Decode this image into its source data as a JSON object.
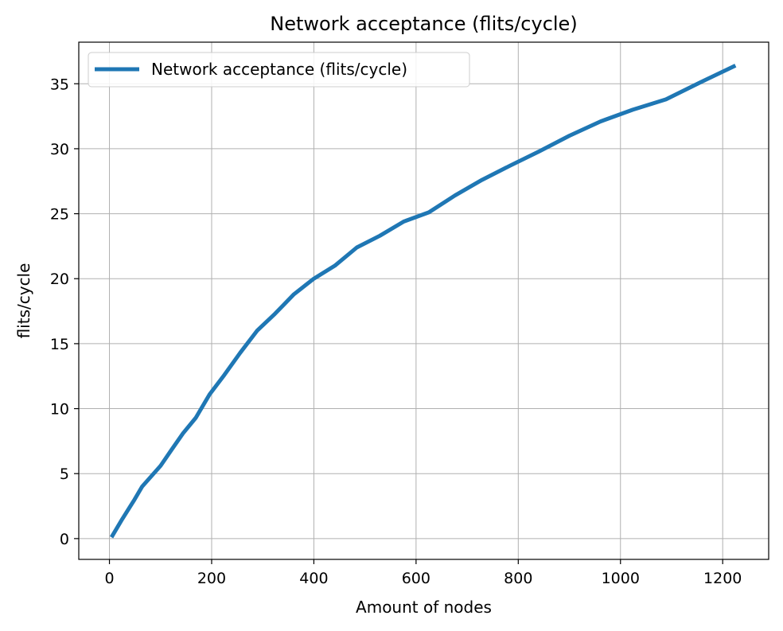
{
  "chart_data": {
    "type": "line",
    "title": "Network acceptance (flits/cycle)",
    "xlabel": "Amount of nodes",
    "ylabel": "flits/cycle",
    "xlim": [
      -60,
      1290
    ],
    "ylim": [
      -1.6,
      38.2
    ],
    "xticks": [
      0,
      200,
      400,
      600,
      800,
      1000,
      1200
    ],
    "yticks": [
      0,
      5,
      10,
      15,
      20,
      25,
      30,
      35
    ],
    "grid": true,
    "legend_position": "upper-left",
    "series": [
      {
        "name": "Network acceptance (flits/cycle)",
        "color": "#1f77b4",
        "x": [
          4,
          25,
          49,
          64,
          100,
          121,
          144,
          169,
          196,
          225,
          256,
          289,
          324,
          361,
          400,
          441,
          484,
          529,
          576,
          625,
          676,
          729,
          784,
          841,
          900,
          961,
          1024,
          1089,
          1156,
          1225
        ],
        "y": [
          0.1,
          1.5,
          3.0,
          4.0,
          5.6,
          6.8,
          8.1,
          9.3,
          11.1,
          12.6,
          14.3,
          16.0,
          17.3,
          18.8,
          20.0,
          21.0,
          22.4,
          23.3,
          24.4,
          25.1,
          26.4,
          27.6,
          28.7,
          29.8,
          31.0,
          32.1,
          33.0,
          33.8,
          35.1,
          36.4
        ]
      }
    ]
  }
}
